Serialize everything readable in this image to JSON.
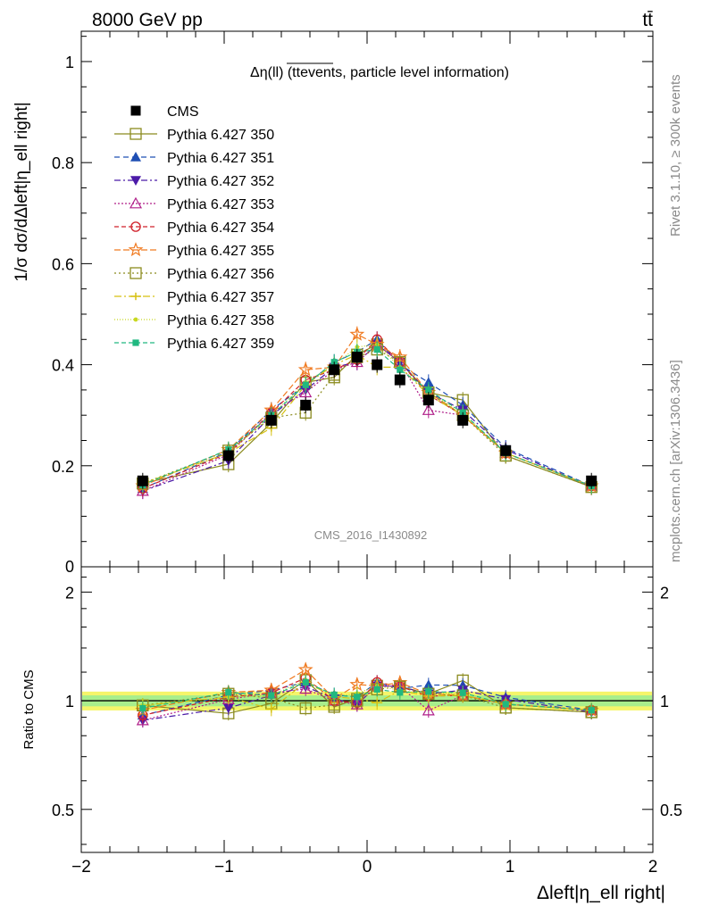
{
  "header": {
    "left": "8000 GeV pp",
    "right": "tt̄"
  },
  "side": {
    "rivet": "Rivet 3.1.10, ≥ 300k events",
    "mcplots": "mcplots.cern.ch [arXiv:1306.3436]"
  },
  "chart_data": [
    {
      "type": "scatter",
      "title": "Δη(ll) (ttevents, particle level information)",
      "watermark": "CMS_2016_I1430892",
      "ylabel": "1/σ dσ/dΔleft|η_ell right|",
      "xlabel": "Δleft|η_ell right|",
      "xlim": [
        -2,
        2
      ],
      "ylim": [
        0,
        1.06
      ],
      "x_ticks": [
        "−2",
        "−1",
        "0",
        "1",
        "2"
      ],
      "y_ticks": [
        "0.2",
        "0.4",
        "0.6",
        "0.8",
        "1"
      ],
      "y_tick_zero": "0",
      "x": [
        -1.57,
        -0.97,
        -0.67,
        -0.43,
        -0.23,
        -0.07,
        0.07,
        0.23,
        0.43,
        0.67,
        0.97,
        1.57
      ],
      "series": [
        {
          "name": "CMS",
          "color": "#000000",
          "marker": "square-filled",
          "dash": "none",
          "line": false,
          "values": [
            0.17,
            0.22,
            0.29,
            0.32,
            0.39,
            0.415,
            0.4,
            0.37,
            0.33,
            0.29,
            0.23,
            0.17
          ]
        },
        {
          "name": "Pythia 6.427 350",
          "color": "#8b8b1e",
          "marker": "square-open",
          "dash": "none",
          "line": true,
          "values": [
            0.165,
            0.203,
            0.285,
            0.365,
            0.375,
            0.42,
            0.44,
            0.405,
            0.345,
            0.33,
            0.22,
            0.158
          ]
        },
        {
          "name": "Pythia 6.427 351",
          "color": "#1f4fb4",
          "marker": "triangle-up-filled",
          "dash": "6,4",
          "line": true,
          "values": [
            0.155,
            0.228,
            0.31,
            0.36,
            0.405,
            0.425,
            0.45,
            0.4,
            0.365,
            0.32,
            0.235,
            0.16
          ]
        },
        {
          "name": "Pythia 6.427 352",
          "color": "#4b1aa8",
          "marker": "triangle-down-filled",
          "dash": "7,3,2,3",
          "line": true,
          "values": [
            0.15,
            0.21,
            0.3,
            0.35,
            0.395,
            0.405,
            0.44,
            0.405,
            0.345,
            0.31,
            0.232,
            0.158
          ]
        },
        {
          "name": "Pythia 6.427 353",
          "color": "#b0208a",
          "marker": "triangle-up-open",
          "dash": "2,2",
          "line": true,
          "values": [
            0.15,
            0.222,
            0.305,
            0.345,
            0.39,
            0.405,
            0.44,
            0.405,
            0.31,
            0.3,
            0.225,
            0.16
          ]
        },
        {
          "name": "Pythia 6.427 354",
          "color": "#d0202a",
          "marker": "circle-open",
          "dash": "5,3",
          "line": true,
          "values": [
            0.155,
            0.225,
            0.305,
            0.37,
            0.39,
            0.41,
            0.45,
            0.405,
            0.34,
            0.3,
            0.225,
            0.16
          ]
        },
        {
          "name": "Pythia 6.427 355",
          "color": "#f07a20",
          "marker": "star-open",
          "dash": "7,3",
          "line": true,
          "values": [
            0.16,
            0.232,
            0.31,
            0.39,
            0.395,
            0.46,
            0.44,
            0.415,
            0.345,
            0.3,
            0.225,
            0.16
          ]
        },
        {
          "name": "Pythia 6.427 356",
          "color": "#8b8b1e",
          "marker": "square-open",
          "dash": "2,3",
          "line": true,
          "values": [
            0.165,
            0.23,
            0.295,
            0.305,
            0.38,
            0.415,
            0.43,
            0.405,
            0.345,
            0.3,
            0.22,
            0.158
          ]
        },
        {
          "name": "Pythia 6.427 357",
          "color": "#d6c010",
          "marker": "cross",
          "dash": "8,3,2,3",
          "line": true,
          "values": [
            0.165,
            0.225,
            0.275,
            0.36,
            0.4,
            0.42,
            0.395,
            0.395,
            0.34,
            0.3,
            0.225,
            0.16
          ]
        },
        {
          "name": "Pythia 6.427 358",
          "color": "#c8d820",
          "marker": "dot",
          "dash": "1,2",
          "line": true,
          "values": [
            0.165,
            0.225,
            0.3,
            0.365,
            0.4,
            0.435,
            0.44,
            0.395,
            0.345,
            0.305,
            0.225,
            0.16
          ]
        },
        {
          "name": "Pythia 6.427 359",
          "color": "#20b880",
          "marker": "square-filled-small",
          "dash": "5,3",
          "line": true,
          "values": [
            0.162,
            0.232,
            0.3,
            0.36,
            0.405,
            0.425,
            0.43,
            0.39,
            0.35,
            0.305,
            0.225,
            0.16
          ]
        }
      ]
    },
    {
      "type": "scatter",
      "ylabel": "Ratio to CMS",
      "ylim": [
        0.38,
        2.35
      ],
      "y_ticks": [
        "0.5",
        "1",
        "2"
      ],
      "y_ticks_right": [
        "0.5",
        "1",
        "2"
      ],
      "band_colors": [
        "#f5f56a",
        "#a8ee8c"
      ]
    }
  ]
}
